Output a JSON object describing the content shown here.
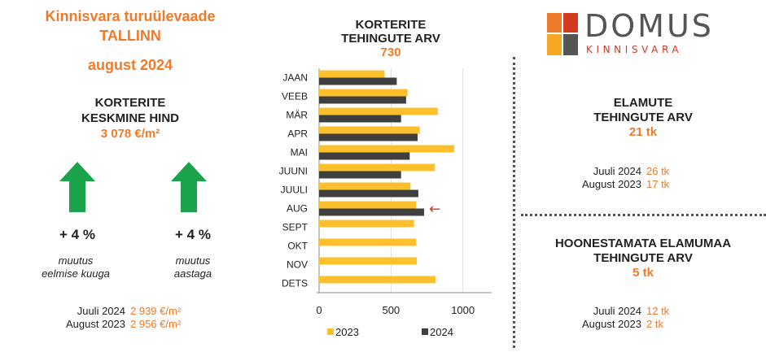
{
  "header": {
    "title_line1": "Kinnisvara turuülevaade",
    "title_line2": "TALLINN",
    "title_line3": "august 2024"
  },
  "apartment_price": {
    "label_line1": "KORTERITE",
    "label_line2": "KESKMINE HIND",
    "value": "3 078 €/m²",
    "change_month": {
      "value": "+ 4 %",
      "line1": "muutus",
      "line2": "eelmise kuuga",
      "direction": "up"
    },
    "change_year": {
      "value": "+ 4 %",
      "line1": "muutus",
      "line2": "aastaga",
      "direction": "up"
    },
    "comparison": [
      {
        "label": "Juuli 2024",
        "value": "2 939 €/m²"
      },
      {
        "label": "August 2023",
        "value": "2 956 €/m²"
      }
    ]
  },
  "chart_data": {
    "type": "bar",
    "orientation": "horizontal",
    "title": "KORTERITE TEHINGUTE ARV",
    "title_line1": "KORTERITE",
    "title_line2": "TEHINGUTE ARV",
    "headline_value": "730",
    "categories": [
      "JAAN",
      "VEEB",
      "MÄR",
      "APR",
      "MAI",
      "JUUNI",
      "JUULI",
      "AUG",
      "SEPT",
      "OKT",
      "NOV",
      "DETS"
    ],
    "series": [
      {
        "name": "2023",
        "color": "#fcc02c",
        "values": [
          455,
          615,
          825,
          700,
          940,
          805,
          635,
          675,
          660,
          675,
          680,
          810
        ]
      },
      {
        "name": "2024",
        "color": "#3f3f3f",
        "values": [
          540,
          605,
          570,
          685,
          630,
          570,
          690,
          730,
          null,
          null,
          null,
          null
        ]
      }
    ],
    "x_ticks": [
      "0",
      "500",
      "1000"
    ],
    "xlim": [
      0,
      1200
    ],
    "grid": true,
    "legend_position": "bottom",
    "highlight_category": "AUG",
    "highlight_marker": "←"
  },
  "houses": {
    "label_line1": "ELAMUTE",
    "label_line2": "TEHINGUTE ARV",
    "value": "21 tk",
    "comparison": [
      {
        "label": "Juuli 2024",
        "value": "26 tk"
      },
      {
        "label": "August 2023",
        "value": "17 tk"
      }
    ]
  },
  "land": {
    "label_line1": "HOONESTAMATA ELAMUMAA",
    "label_line2": "TEHINGUTE ARV",
    "value": "5 tk",
    "comparison": [
      {
        "label": "Juuli 2024",
        "value": "12 tk"
      },
      {
        "label": "August 2023",
        "value": "2 tk"
      }
    ]
  },
  "logo": {
    "name": "DOMUS",
    "subtitle": "KINNISVARA",
    "colors": [
      "#ee7b2c",
      "#d23a22",
      "#f5a623",
      "#555555"
    ]
  }
}
